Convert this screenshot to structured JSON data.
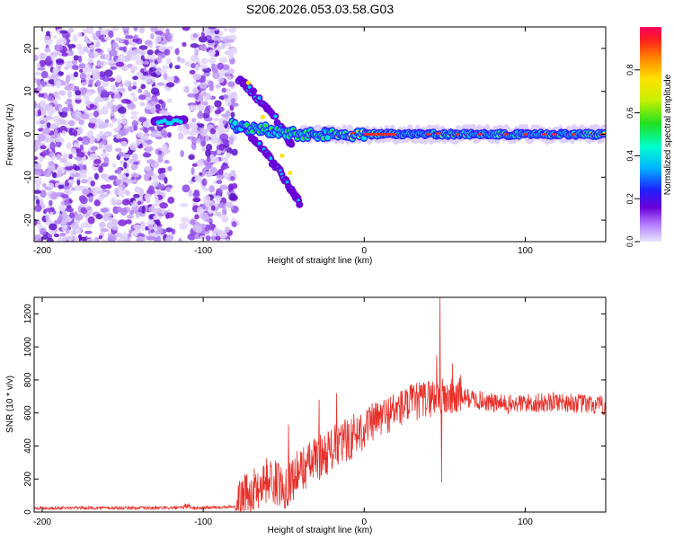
{
  "title": "S206.2026.053.03.58.G03",
  "colors": {
    "signal": "#e8302a",
    "ridge_high": "#e8302a",
    "speckle": "#7a1fd6",
    "axis": "#000000"
  },
  "chart_data": [
    {
      "type": "heatmap",
      "name": "spectrogram",
      "title": "S206.2026.053.03.58.G03",
      "xlabel": "Height of straight line (km)",
      "ylabel": "Frequency (Hz)",
      "xlim": [
        -205,
        150
      ],
      "ylim": [
        -25,
        25
      ],
      "xticks": [
        -200,
        -100,
        0,
        100
      ],
      "yticks": [
        -20,
        -10,
        0,
        10,
        20
      ],
      "colorbar": {
        "label": "Normalized spectral amplitude",
        "range": [
          0,
          1
        ],
        "ticks": [
          "0.0",
          "0.2",
          "0.4",
          "0.6",
          "0.8"
        ],
        "tick_values": [
          0.0,
          0.2,
          0.4,
          0.6,
          0.8
        ]
      },
      "ridge": {
        "description_points_x": [
          -80,
          -60,
          -40,
          -20,
          0,
          20,
          40,
          60,
          80,
          100,
          120,
          150
        ],
        "frequency": [
          2,
          1,
          0,
          0,
          0,
          0,
          0,
          0,
          0,
          0,
          0,
          0
        ]
      },
      "branches": [
        {
          "x": [
            -78,
            -70,
            -60,
            -50,
            -45
          ],
          "y": [
            13,
            10,
            6,
            1,
            -3
          ]
        },
        {
          "x": [
            -75,
            -68,
            -60,
            -52,
            -45,
            -40
          ],
          "y": [
            1,
            -1,
            -5,
            -9,
            -13,
            -16
          ]
        }
      ],
      "noise_region_x": [
        -205,
        -80
      ]
    },
    {
      "type": "line",
      "name": "snr",
      "xlabel": "Height of straight line (km)",
      "ylabel": "SNR (10 * v/v)",
      "xlim": [
        -205,
        150
      ],
      "ylim": [
        0,
        1300
      ],
      "xticks": [
        -200,
        -100,
        0,
        100
      ],
      "yticks": [
        0,
        200,
        400,
        600,
        800,
        1000,
        1200
      ],
      "envelope_x": [
        -205,
        -100,
        -80,
        -70,
        -60,
        -50,
        -40,
        -30,
        -20,
        -10,
        0,
        10,
        20,
        30,
        40,
        45,
        50,
        60,
        70,
        80,
        90,
        100,
        110,
        120,
        130,
        140,
        150
      ],
      "envelope_y": [
        25,
        25,
        35,
        120,
        200,
        150,
        250,
        320,
        380,
        440,
        510,
        570,
        620,
        660,
        690,
        700,
        690,
        700,
        680,
        660,
        650,
        660,
        660,
        670,
        660,
        650,
        640
      ],
      "spikes": [
        {
          "x": -47,
          "y": 530
        },
        {
          "x": -28,
          "y": 680
        },
        {
          "x": -17,
          "y": 720
        },
        {
          "x": 45,
          "y": 950
        },
        {
          "x": 47,
          "y": 1300
        },
        {
          "x": 48,
          "y": 180
        },
        {
          "x": 55,
          "y": 900
        },
        {
          "x": 60,
          "y": 830
        }
      ]
    }
  ]
}
